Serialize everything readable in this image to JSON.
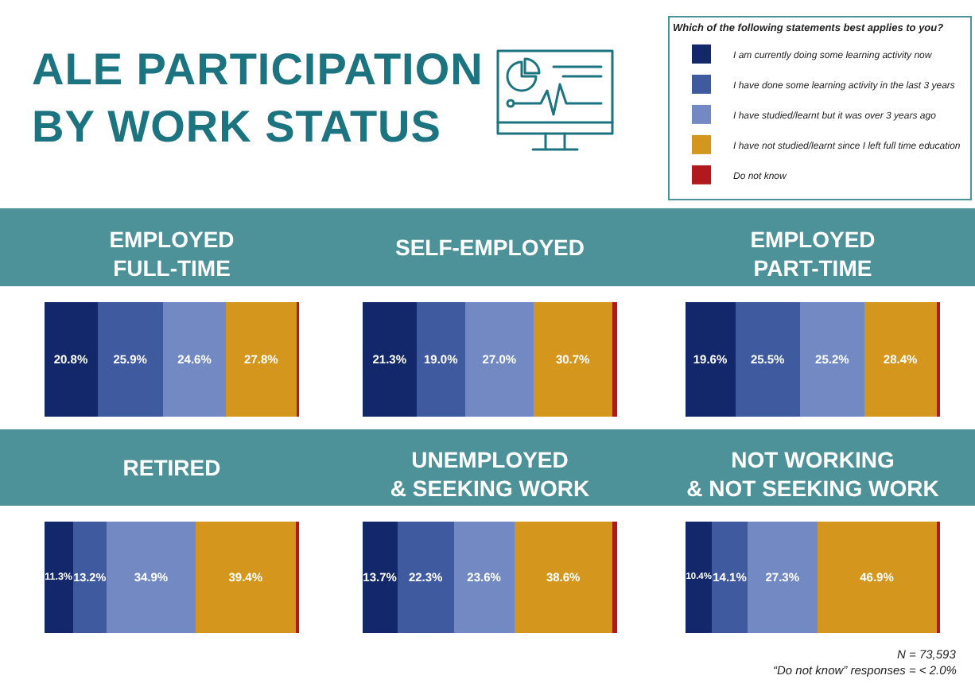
{
  "chart_data": [
    {
      "type": "other",
      "title": "ALE PARTICIPATION BY WORK STATUS"
    },
    {
      "type": "bar",
      "title": "EMPLOYED FULL-TIME",
      "orientation": "horizontal",
      "stacked": true,
      "categories": [
        null
      ],
      "xlim": [
        0,
        100
      ],
      "series": [
        {
          "color": "#12286a",
          "values": [
            20.8
          ],
          "value_labels": [
            "20.8%"
          ]
        },
        {
          "color": "#3f5a9e",
          "values": [
            25.9
          ],
          "value_labels": [
            "25.9%"
          ]
        },
        {
          "color": "#7289c3",
          "values": [
            24.6
          ],
          "value_labels": [
            "24.6%"
          ]
        },
        {
          "color": "#d4961d",
          "values": [
            27.8
          ],
          "value_labels": [
            "27.8%"
          ]
        },
        {
          "color": "#b01a1f",
          "values": [
            0.9
          ],
          "value_labels": [
            null
          ]
        }
      ]
    },
    {
      "type": "bar",
      "title": "SELF-EMPLOYED",
      "orientation": "horizontal",
      "stacked": true,
      "categories": [
        null
      ],
      "xlim": [
        0,
        100
      ],
      "series": [
        {
          "color": "#12286a",
          "values": [
            21.3
          ],
          "value_labels": [
            "21.3%"
          ]
        },
        {
          "color": "#3f5a9e",
          "values": [
            19.0
          ],
          "value_labels": [
            "19.0%"
          ]
        },
        {
          "color": "#7289c3",
          "values": [
            27.0
          ],
          "value_labels": [
            "27.0%"
          ]
        },
        {
          "color": "#d4961d",
          "values": [
            30.7
          ],
          "value_labels": [
            "30.7%"
          ]
        },
        {
          "color": "#b01a1f",
          "values": [
            2.0
          ],
          "value_labels": [
            null
          ]
        }
      ]
    },
    {
      "type": "bar",
      "title": "EMPLOYED PART-TIME",
      "orientation": "horizontal",
      "stacked": true,
      "categories": [
        null
      ],
      "xlim": [
        0,
        100
      ],
      "legend": "top right",
      "legend_title": "Which of the following statements best applies to you?",
      "series": [
        {
          "name": "I am currently doing some learning activity now",
          "color": "#12286a",
          "values": [
            19.6
          ],
          "value_labels": [
            "19.6%"
          ]
        },
        {
          "name": "I have done some learning activity in the last 3 years",
          "color": "#3f5a9e",
          "values": [
            25.5
          ],
          "value_labels": [
            "25.5%"
          ]
        },
        {
          "name": "I have studied/learnt but it was over 3 years ago",
          "color": "#7289c3",
          "values": [
            25.2
          ],
          "value_labels": [
            "25.2%"
          ]
        },
        {
          "name": "I have not studied/learnt since I left full time education",
          "color": "#d4961d",
          "values": [
            28.4
          ],
          "value_labels": [
            "28.4%"
          ]
        },
        {
          "name": "Do not know",
          "color": "#b01a1f",
          "values": [
            1.3
          ],
          "value_labels": [
            null
          ]
        }
      ]
    },
    {
      "type": "bar",
      "title": "RETIRED",
      "orientation": "horizontal",
      "stacked": true,
      "categories": [
        null
      ],
      "xlim": [
        0,
        100
      ],
      "series": [
        {
          "color": "#12286a",
          "values": [
            11.3
          ],
          "value_labels": [
            "11.3%"
          ]
        },
        {
          "color": "#3f5a9e",
          "values": [
            13.2
          ],
          "value_labels": [
            "13.2%"
          ]
        },
        {
          "color": "#7289c3",
          "values": [
            34.9
          ],
          "value_labels": [
            "34.9%"
          ]
        },
        {
          "color": "#d4961d",
          "values": [
            39.4
          ],
          "value_labels": [
            "39.4%"
          ]
        },
        {
          "color": "#b01a1f",
          "values": [
            1.2
          ],
          "value_labels": [
            null
          ]
        }
      ]
    },
    {
      "type": "bar",
      "title": "UNEMPLOYED & SEEKING WORK",
      "orientation": "horizontal",
      "stacked": true,
      "categories": [
        null
      ],
      "xlim": [
        0,
        100
      ],
      "series": [
        {
          "color": "#12286a",
          "values": [
            13.7
          ],
          "value_labels": [
            "13.7%"
          ]
        },
        {
          "color": "#3f5a9e",
          "values": [
            22.3
          ],
          "value_labels": [
            "22.3%"
          ]
        },
        {
          "color": "#7289c3",
          "values": [
            23.6
          ],
          "value_labels": [
            "23.6%"
          ]
        },
        {
          "color": "#d4961d",
          "values": [
            38.6
          ],
          "value_labels": [
            "38.6%"
          ]
        },
        {
          "color": "#b01a1f",
          "values": [
            1.8
          ],
          "value_labels": [
            null
          ]
        }
      ]
    },
    {
      "type": "bar",
      "title": "NOT WORKING & NOT SEEKING WORK",
      "orientation": "horizontal",
      "stacked": true,
      "categories": [
        null
      ],
      "xlim": [
        0,
        100
      ],
      "series": [
        {
          "color": "#12286a",
          "values": [
            10.4
          ],
          "value_labels": [
            "10.4%"
          ]
        },
        {
          "color": "#3f5a9e",
          "values": [
            14.1
          ],
          "value_labels": [
            "14.1%"
          ]
        },
        {
          "color": "#7289c3",
          "values": [
            27.3
          ],
          "value_labels": [
            "27.3%"
          ]
        },
        {
          "color": "#d4961d",
          "values": [
            46.9
          ],
          "value_labels": [
            "46.9%"
          ]
        },
        {
          "color": "#b01a1f",
          "values": [
            1.3
          ],
          "value_labels": [
            null
          ]
        }
      ],
      "annotations": [
        "N = 73,593",
        "“Do not know” responses = < 2.0%"
      ]
    }
  ]
}
